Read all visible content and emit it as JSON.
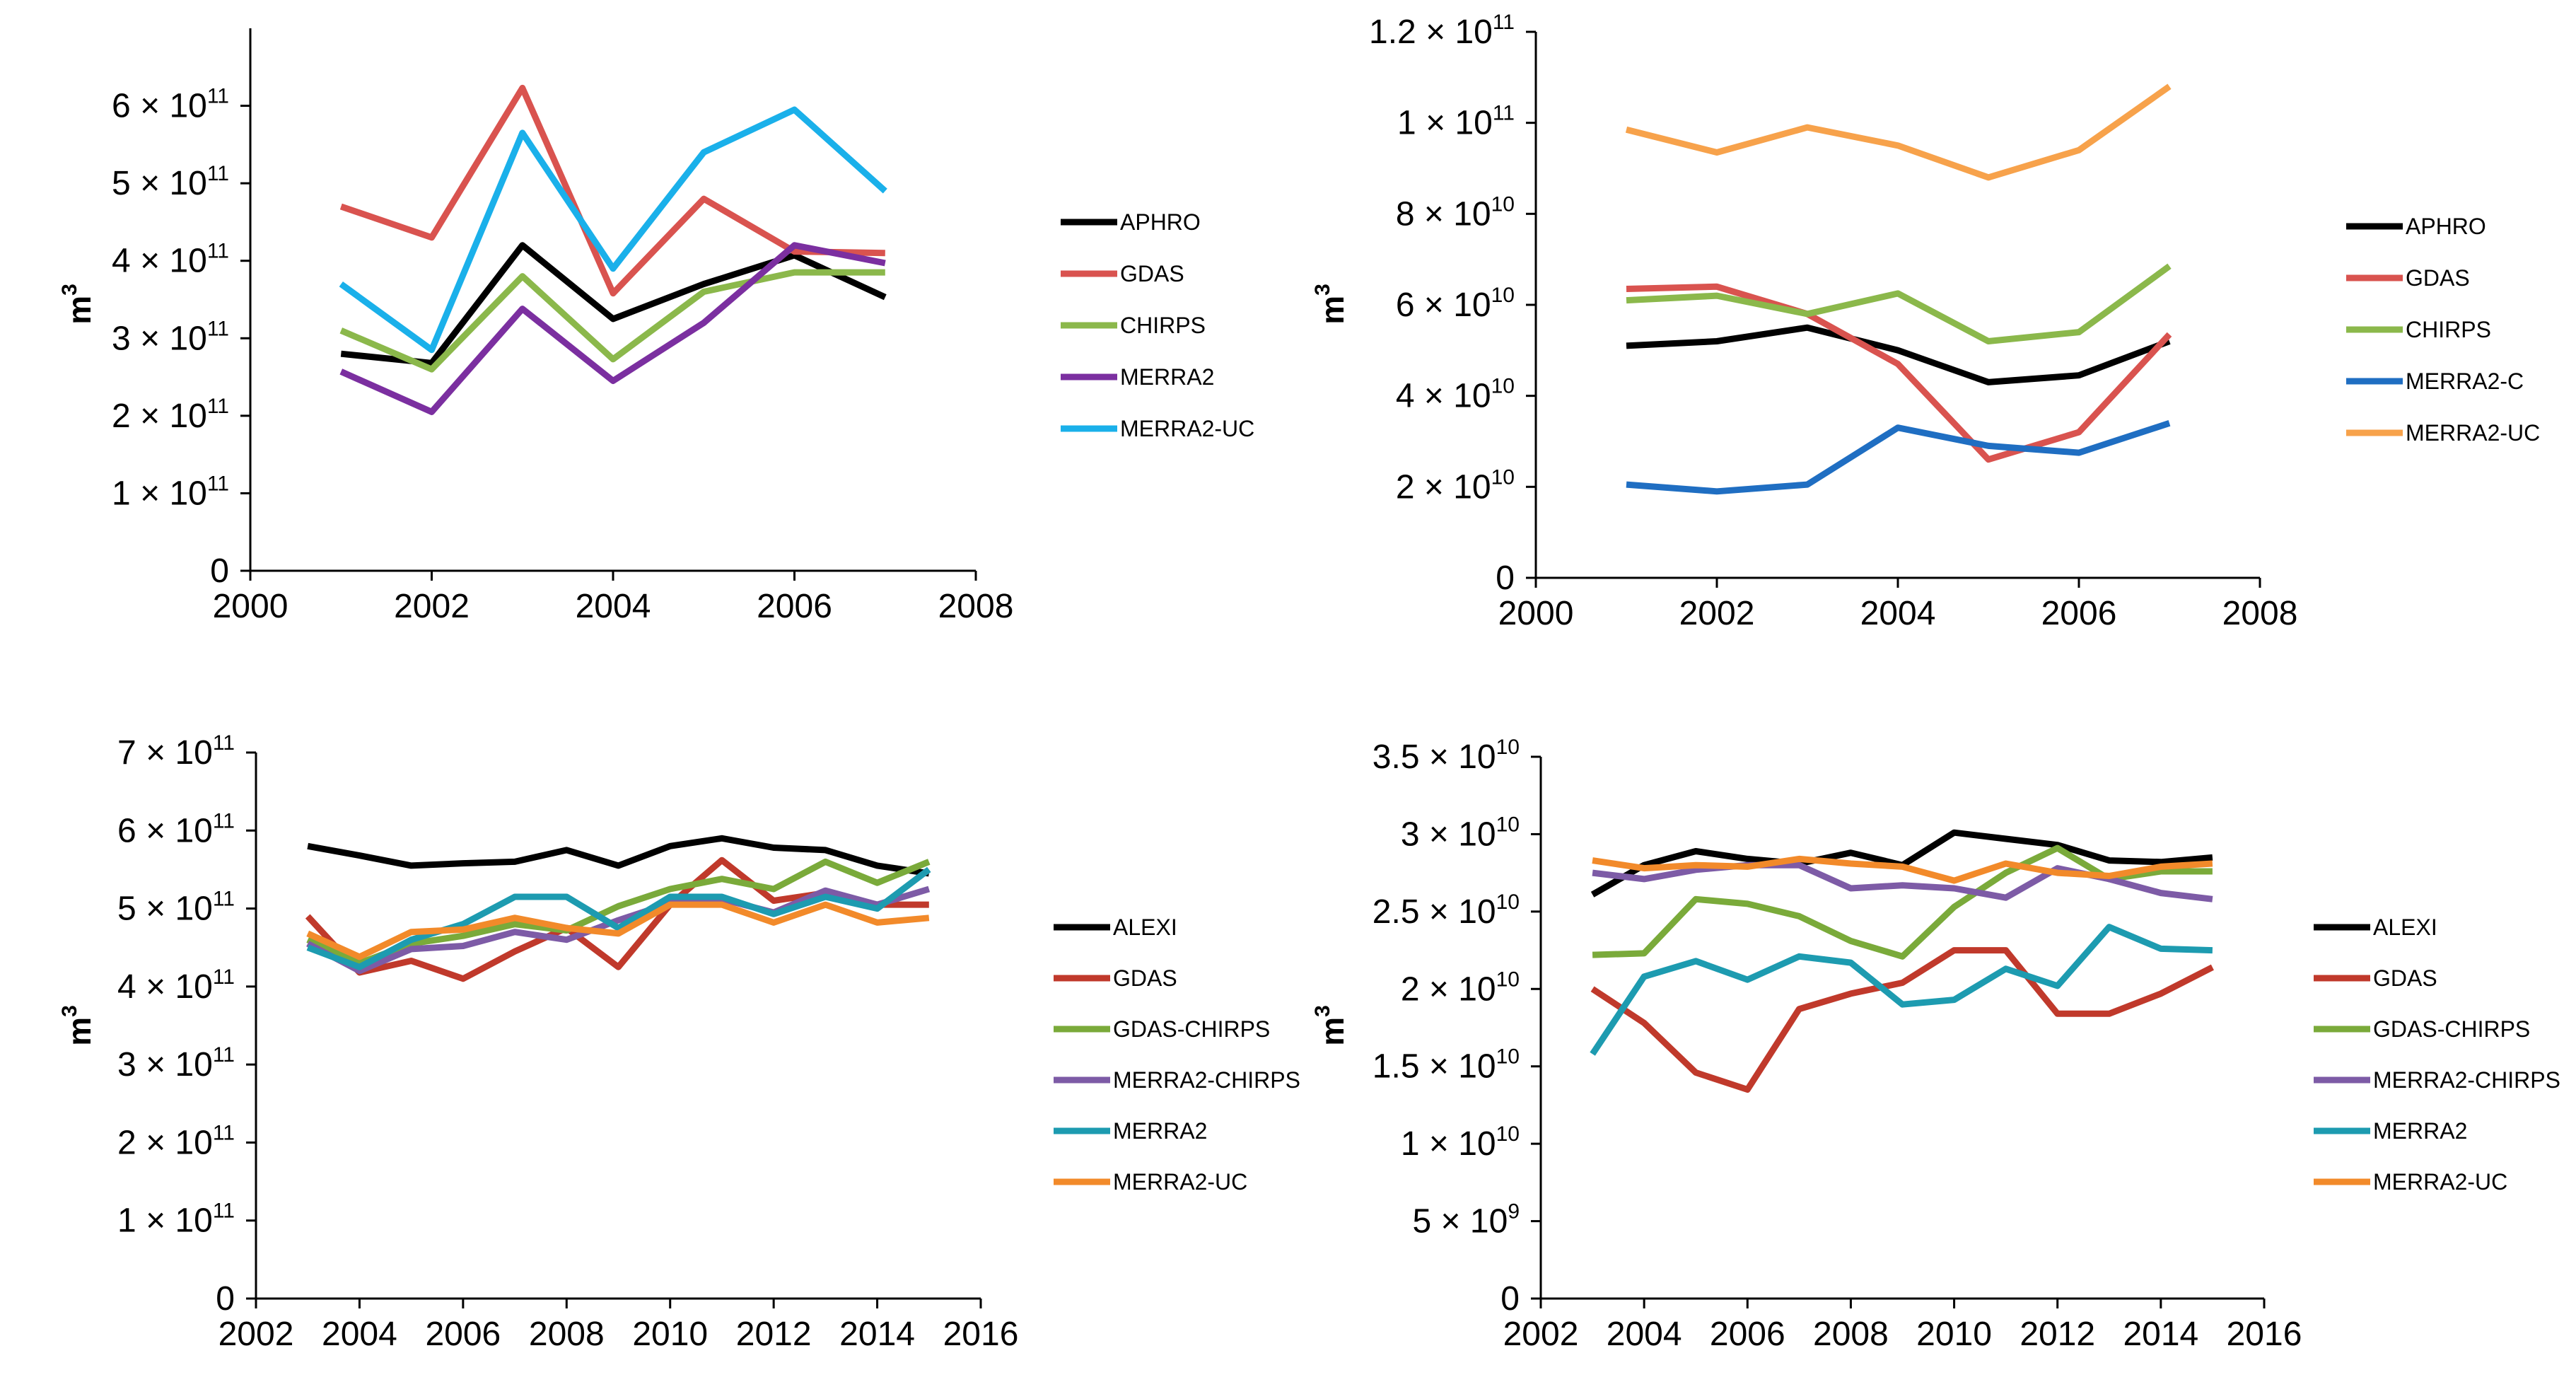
{
  "chart_data": [
    {
      "type": "line",
      "title": "",
      "xlabel": "",
      "ylabel": "m3",
      "xlim": [
        2000,
        2008
      ],
      "ylim": [
        0,
        700000000000
      ],
      "x_ticks": [
        {
          "value": 2000,
          "label": "2000"
        },
        {
          "value": 2002,
          "label": "2002"
        },
        {
          "value": 2004,
          "label": "2004"
        },
        {
          "value": 2006,
          "label": "2006"
        },
        {
          "value": 2008,
          "label": "2008"
        }
      ],
      "y_ticks": [
        {
          "value": 0,
          "mant": "0",
          "exp": ""
        },
        {
          "value": 100000000000,
          "mant": "1 × 10",
          "exp": "11"
        },
        {
          "value": 200000000000,
          "mant": "2 × 10",
          "exp": "11"
        },
        {
          "value": 300000000000,
          "mant": "3 × 10",
          "exp": "11"
        },
        {
          "value": 400000000000,
          "mant": "4 × 10",
          "exp": "11"
        },
        {
          "value": 500000000000,
          "mant": "5 × 10",
          "exp": "11"
        },
        {
          "value": 600000000000,
          "mant": "6 × 10",
          "exp": "11"
        }
      ],
      "legend_position": "right",
      "series": [
        {
          "name": "APHRO",
          "color": "#000000",
          "x": [
            2001,
            2002,
            2003,
            2004,
            2005,
            2006,
            2007
          ],
          "values": [
            280000000000.0,
            268000000000.0,
            420000000000.0,
            325000000000.0,
            370000000000.0,
            407000000000.0,
            353000000000.0
          ]
        },
        {
          "name": "GDAS",
          "color": "#d9534f",
          "x": [
            2001,
            2002,
            2003,
            2004,
            2005,
            2006,
            2007
          ],
          "values": [
            470000000000.0,
            430000000000.0,
            623000000000.0,
            358000000000.0,
            480000000000.0,
            412000000000.0,
            410000000000.0
          ]
        },
        {
          "name": "CHIRPS",
          "color": "#8bb84b",
          "x": [
            2001,
            2002,
            2003,
            2004,
            2005,
            2006,
            2007
          ],
          "values": [
            310000000000.0,
            260000000000.0,
            380000000000.0,
            273000000000.0,
            360000000000.0,
            385000000000.0,
            385000000000.0
          ]
        },
        {
          "name": "MERRA2",
          "color": "#7b2fa0",
          "x": [
            2001,
            2002,
            2003,
            2004,
            2005,
            2006,
            2007
          ],
          "values": [
            257000000000.0,
            205000000000.0,
            338000000000.0,
            245000000000.0,
            320000000000.0,
            420000000000.0,
            397000000000.0
          ]
        },
        {
          "name": "MERRA2-UC",
          "color": "#1ab0ea",
          "x": [
            2001,
            2002,
            2003,
            2004,
            2005,
            2006,
            2007
          ],
          "values": [
            370000000000.0,
            285000000000.0,
            565000000000.0,
            390000000000.0,
            540000000000.0,
            595000000000.0,
            490000000000.0
          ]
        }
      ]
    },
    {
      "type": "line",
      "title": "",
      "xlabel": "",
      "ylabel": "m3",
      "xlim": [
        2000,
        2008
      ],
      "ylim": [
        0,
        120000000000
      ],
      "x_ticks": [
        {
          "value": 2000,
          "label": "2000"
        },
        {
          "value": 2002,
          "label": "2002"
        },
        {
          "value": 2004,
          "label": "2004"
        },
        {
          "value": 2006,
          "label": "2006"
        },
        {
          "value": 2008,
          "label": "2008"
        }
      ],
      "y_ticks": [
        {
          "value": 0,
          "mant": "0",
          "exp": ""
        },
        {
          "value": 20000000000,
          "mant": "2 × 10",
          "exp": "10"
        },
        {
          "value": 40000000000,
          "mant": "4 × 10",
          "exp": "10"
        },
        {
          "value": 60000000000,
          "mant": "6 × 10",
          "exp": "10"
        },
        {
          "value": 80000000000,
          "mant": "8 × 10",
          "exp": "10"
        },
        {
          "value": 100000000000,
          "mant": "1 × 10",
          "exp": "11"
        },
        {
          "value": 120000000000,
          "mant": "1.2 × 10",
          "exp": "11"
        }
      ],
      "legend_position": "right",
      "series": [
        {
          "name": "APHRO",
          "color": "#000000",
          "x": [
            2001,
            2002,
            2003,
            2004,
            2005,
            2006,
            2007
          ],
          "values": [
            51000000000.0,
            52000000000.0,
            55000000000.0,
            50000000000.0,
            43000000000.0,
            44500000000.0,
            52000000000.0
          ]
        },
        {
          "name": "GDAS",
          "color": "#d9534f",
          "x": [
            2001,
            2002,
            2003,
            2004,
            2005,
            2006,
            2007
          ],
          "values": [
            63500000000.0,
            64000000000.0,
            58000000000.0,
            47000000000.0,
            26000000000.0,
            32000000000.0,
            53500000000.0
          ]
        },
        {
          "name": "CHIRPS",
          "color": "#8bb84b",
          "x": [
            2001,
            2002,
            2003,
            2004,
            2005,
            2006,
            2007
          ],
          "values": [
            61000000000.0,
            62000000000.0,
            58000000000.0,
            62500000000.0,
            52000000000.0,
            54000000000.0,
            68500000000.0
          ]
        },
        {
          "name": "MERRA2-C",
          "color": "#1f6ec2",
          "x": [
            2001,
            2002,
            2003,
            2004,
            2005,
            2006,
            2007
          ],
          "values": [
            20500000000.0,
            19000000000.0,
            20500000000.0,
            33000000000.0,
            29000000000.0,
            27500000000.0,
            34000000000.0
          ]
        },
        {
          "name": "MERRA2-UC",
          "color": "#f7a24b",
          "x": [
            2001,
            2002,
            2003,
            2004,
            2005,
            2006,
            2007
          ],
          "values": [
            98500000000.0,
            93500000000.0,
            99000000000.0,
            95000000000.0,
            88000000000.0,
            94000000000.0,
            108000000000.0
          ]
        }
      ]
    },
    {
      "type": "line",
      "title": "",
      "xlabel": "",
      "ylabel": "m3",
      "xlim": [
        2002,
        2016
      ],
      "ylim": [
        0,
        700000000000
      ],
      "x_ticks": [
        {
          "value": 2002,
          "label": "2002"
        },
        {
          "value": 2004,
          "label": "2004"
        },
        {
          "value": 2006,
          "label": "2006"
        },
        {
          "value": 2008,
          "label": "2008"
        },
        {
          "value": 2010,
          "label": "2010"
        },
        {
          "value": 2012,
          "label": "2012"
        },
        {
          "value": 2014,
          "label": "2014"
        },
        {
          "value": 2016,
          "label": "2016"
        }
      ],
      "y_ticks": [
        {
          "value": 0,
          "mant": "0",
          "exp": ""
        },
        {
          "value": 100000000000,
          "mant": "1 × 10",
          "exp": "11"
        },
        {
          "value": 200000000000,
          "mant": "2 × 10",
          "exp": "11"
        },
        {
          "value": 300000000000,
          "mant": "3 × 10",
          "exp": "11"
        },
        {
          "value": 400000000000,
          "mant": "4 × 10",
          "exp": "11"
        },
        {
          "value": 500000000000,
          "mant": "5 × 10",
          "exp": "11"
        },
        {
          "value": 600000000000,
          "mant": "6 × 10",
          "exp": "11"
        },
        {
          "value": 700000000000,
          "mant": "7 × 10",
          "exp": "11"
        }
      ],
      "legend_position": "right",
      "series": [
        {
          "name": "ALEXI",
          "color": "#000000",
          "x": [
            2003,
            2004,
            2005,
            2006,
            2007,
            2008,
            2009,
            2010,
            2011,
            2012,
            2013,
            2014,
            2015
          ],
          "values": [
            580000000000.0,
            568000000000.0,
            555000000000.0,
            558000000000.0,
            560000000000.0,
            575000000000.0,
            555000000000.0,
            580000000000.0,
            590000000000.0,
            578000000000.0,
            575000000000.0,
            555000000000.0,
            545000000000.0
          ]
        },
        {
          "name": "GDAS",
          "color": "#c0392b",
          "x": [
            2003,
            2004,
            2005,
            2006,
            2007,
            2008,
            2009,
            2010,
            2011,
            2012,
            2013,
            2014,
            2015
          ],
          "values": [
            490000000000.0,
            418000000000.0,
            433000000000.0,
            410000000000.0,
            445000000000.0,
            475000000000.0,
            425000000000.0,
            505000000000.0,
            562000000000.0,
            510000000000.0,
            520000000000.0,
            505000000000.0,
            505000000000.0
          ]
        },
        {
          "name": "GDAS-CHIRPS",
          "color": "#7aaa3a",
          "x": [
            2003,
            2004,
            2005,
            2006,
            2007,
            2008,
            2009,
            2010,
            2011,
            2012,
            2013,
            2014,
            2015
          ],
          "values": [
            460000000000.0,
            430000000000.0,
            455000000000.0,
            465000000000.0,
            480000000000.0,
            472000000000.0,
            503000000000.0,
            525000000000.0,
            538000000000.0,
            525000000000.0,
            560000000000.0,
            533000000000.0,
            560000000000.0
          ]
        },
        {
          "name": "MERRA2-CHIRPS",
          "color": "#7d5ba6",
          "x": [
            2003,
            2004,
            2005,
            2006,
            2007,
            2008,
            2009,
            2010,
            2011,
            2012,
            2013,
            2014,
            2015
          ],
          "values": [
            455000000000.0,
            420000000000.0,
            448000000000.0,
            452000000000.0,
            470000000000.0,
            460000000000.0,
            485000000000.0,
            507000000000.0,
            512000000000.0,
            495000000000.0,
            523000000000.0,
            505000000000.0,
            525000000000.0
          ]
        },
        {
          "name": "MERRA2",
          "color": "#1d9bb0",
          "x": [
            2003,
            2004,
            2005,
            2006,
            2007,
            2008,
            2009,
            2010,
            2011,
            2012,
            2013,
            2014,
            2015
          ],
          "values": [
            450000000000.0,
            425000000000.0,
            460000000000.0,
            480000000000.0,
            515000000000.0,
            515000000000.0,
            475000000000.0,
            515000000000.0,
            515000000000.0,
            493000000000.0,
            515000000000.0,
            500000000000.0,
            550000000000.0
          ]
        },
        {
          "name": "MERRA2-UC",
          "color": "#f28a2a",
          "x": [
            2003,
            2004,
            2005,
            2006,
            2007,
            2008,
            2009,
            2010,
            2011,
            2012,
            2013,
            2014,
            2015
          ],
          "values": [
            468000000000.0,
            438000000000.0,
            470000000000.0,
            473000000000.0,
            488000000000.0,
            475000000000.0,
            468000000000.0,
            505000000000.0,
            505000000000.0,
            482000000000.0,
            505000000000.0,
            482000000000.0,
            488000000000.0
          ]
        }
      ]
    },
    {
      "type": "line",
      "title": "",
      "xlabel": "",
      "ylabel": "m3",
      "xlim": [
        2002,
        2016
      ],
      "ylim": [
        0,
        35000000000
      ],
      "x_ticks": [
        {
          "value": 2002,
          "label": "2002"
        },
        {
          "value": 2004,
          "label": "2004"
        },
        {
          "value": 2006,
          "label": "2006"
        },
        {
          "value": 2008,
          "label": "2008"
        },
        {
          "value": 2010,
          "label": "2010"
        },
        {
          "value": 2012,
          "label": "2012"
        },
        {
          "value": 2014,
          "label": "2014"
        },
        {
          "value": 2016,
          "label": "2016"
        }
      ],
      "y_ticks": [
        {
          "value": 0,
          "mant": "0",
          "exp": ""
        },
        {
          "value": 5000000000,
          "mant": "5 × 10",
          "exp": "9"
        },
        {
          "value": 10000000000,
          "mant": "1 × 10",
          "exp": "10"
        },
        {
          "value": 15000000000,
          "mant": "1.5 × 10",
          "exp": "10"
        },
        {
          "value": 20000000000,
          "mant": "2 × 10",
          "exp": "10"
        },
        {
          "value": 25000000000,
          "mant": "2.5 × 10",
          "exp": "10"
        },
        {
          "value": 30000000000,
          "mant": "3 × 10",
          "exp": "10"
        },
        {
          "value": 35000000000,
          "mant": "3.5 × 10",
          "exp": "10"
        }
      ],
      "legend_position": "right",
      "series": [
        {
          "name": "ALEXI",
          "color": "#000000",
          "x": [
            2003,
            2004,
            2005,
            2006,
            2007,
            2008,
            2009,
            2010,
            2011,
            2012,
            2013,
            2014,
            2015
          ],
          "values": [
            26100000000.0,
            28000000000.0,
            28900000000.0,
            28400000000.0,
            28100000000.0,
            28800000000.0,
            28000000000.0,
            30100000000.0,
            29700000000.0,
            29300000000.0,
            28300000000.0,
            28200000000.0,
            28500000000.0
          ]
        },
        {
          "name": "GDAS",
          "color": "#c0392b",
          "x": [
            2003,
            2004,
            2005,
            2006,
            2007,
            2008,
            2009,
            2010,
            2011,
            2012,
            2013,
            2014,
            2015
          ],
          "values": [
            20000000000.0,
            17800000000.0,
            14600000000.0,
            13500000000.0,
            18700000000.0,
            19700000000.0,
            20400000000.0,
            22500000000.0,
            22500000000.0,
            18400000000.0,
            18400000000.0,
            19700000000.0,
            21400000000.0
          ]
        },
        {
          "name": "GDAS-CHIRPS",
          "color": "#7aaa3a",
          "x": [
            2003,
            2004,
            2005,
            2006,
            2007,
            2008,
            2009,
            2010,
            2011,
            2012,
            2013,
            2014,
            2015
          ],
          "values": [
            22200000000.0,
            22300000000.0,
            25800000000.0,
            25500000000.0,
            24700000000.0,
            23100000000.0,
            22100000000.0,
            25300000000.0,
            27500000000.0,
            29100000000.0,
            27100000000.0,
            27600000000.0,
            27600000000.0
          ]
        },
        {
          "name": "MERRA2-CHIRPS",
          "color": "#7d5ba6",
          "x": [
            2003,
            2004,
            2005,
            2006,
            2007,
            2008,
            2009,
            2010,
            2011,
            2012,
            2013,
            2014,
            2015
          ],
          "values": [
            27500000000.0,
            27100000000.0,
            27700000000.0,
            28000000000.0,
            28000000000.0,
            26500000000.0,
            26700000000.0,
            26500000000.0,
            25900000000.0,
            27800000000.0,
            27100000000.0,
            26200000000.0,
            25800000000.0
          ]
        },
        {
          "name": "MERRA2",
          "color": "#1d9bb0",
          "x": [
            2003,
            2004,
            2005,
            2006,
            2007,
            2008,
            2009,
            2010,
            2011,
            2012,
            2013,
            2014,
            2015
          ],
          "values": [
            15800000000.0,
            20800000000.0,
            21800000000.0,
            20600000000.0,
            22100000000.0,
            21700000000.0,
            19000000000.0,
            19300000000.0,
            21300000000.0,
            20200000000.0,
            24000000000.0,
            22600000000.0,
            22500000000.0
          ]
        },
        {
          "name": "MERRA2-UC",
          "color": "#f28a2a",
          "x": [
            2003,
            2004,
            2005,
            2006,
            2007,
            2008,
            2009,
            2010,
            2011,
            2012,
            2013,
            2014,
            2015
          ],
          "values": [
            28300000000.0,
            27800000000.0,
            28000000000.0,
            27900000000.0,
            28400000000.0,
            28100000000.0,
            27900000000.0,
            27000000000.0,
            28100000000.0,
            27500000000.0,
            27300000000.0,
            27900000000.0,
            28100000000.0
          ]
        }
      ]
    }
  ]
}
